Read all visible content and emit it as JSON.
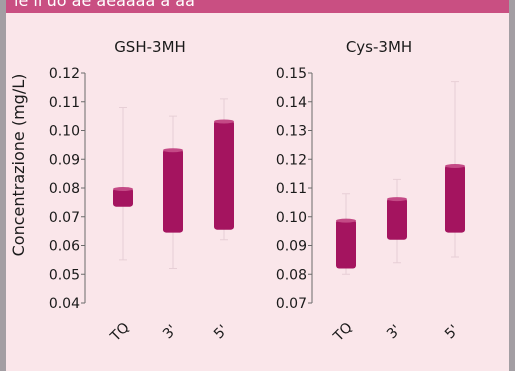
{
  "header": {
    "text": "le ll'uo ae aeaaaa a aa"
  },
  "chart_data": [
    {
      "type": "box",
      "title": "GSH-3MH",
      "ylabel": "Concentrazione (mg/L)",
      "ylim": [
        0.04,
        0.12
      ],
      "yticks": [
        "0.04",
        "0.05",
        "0.06",
        "0.07",
        "0.08",
        "0.09",
        "0.10",
        "0.11",
        "0.12"
      ],
      "categories": [
        "TQ",
        "3'",
        "5'"
      ],
      "boxes": [
        {
          "low": 0.055,
          "q1": 0.0735,
          "q3": 0.08,
          "high": 0.108
        },
        {
          "low": 0.052,
          "q1": 0.0645,
          "q3": 0.0935,
          "high": 0.105
        },
        {
          "low": 0.062,
          "q1": 0.0655,
          "q3": 0.1035,
          "high": 0.111
        }
      ],
      "color": "#a4145f"
    },
    {
      "type": "box",
      "title": "Cys-3MH",
      "ylabel": "",
      "ylim": [
        0.07,
        0.15
      ],
      "yticks": [
        "0.07",
        "0.08",
        "0.09",
        "0.10",
        "0.11",
        "0.12",
        "0.13",
        "0.14",
        "0.15"
      ],
      "categories": [
        "TQ",
        "3'",
        "5'"
      ],
      "boxes": [
        {
          "low": 0.08,
          "q1": 0.082,
          "q3": 0.099,
          "high": 0.108
        },
        {
          "low": 0.084,
          "q1": 0.092,
          "q3": 0.1065,
          "high": 0.113
        },
        {
          "low": 0.086,
          "q1": 0.0945,
          "q3": 0.118,
          "high": 0.147
        }
      ],
      "color": "#a4145f"
    }
  ]
}
